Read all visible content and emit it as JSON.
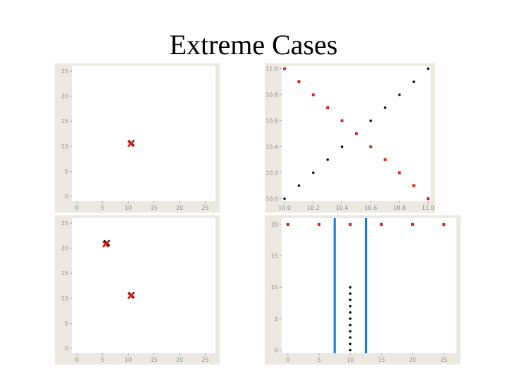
{
  "slide": {
    "title": "Extreme Cases"
  },
  "colors": {
    "red": "#d9201c",
    "black": "#111111",
    "blue": "#1f78c8",
    "panel_bg": "#ece9e3",
    "plot_bg": "#ffffff"
  },
  "chart_data": [
    {
      "type": "scatter",
      "xlim": [
        -1,
        27
      ],
      "ylim": [
        -1,
        26
      ],
      "xticks": [
        "0",
        "5",
        "10",
        "15",
        "20",
        "25"
      ],
      "yticks": [
        "0",
        "5",
        "10",
        "15",
        "20",
        "25"
      ],
      "grid": false,
      "series": [
        {
          "color": "black",
          "marker": "x",
          "points": [
            [
              10.6,
              10.6
            ]
          ]
        },
        {
          "color": "red",
          "marker": "x",
          "points": [
            [
              10.5,
              10.5
            ]
          ]
        }
      ]
    },
    {
      "type": "scatter",
      "xlim": [
        9.98,
        11.02
      ],
      "ylim": [
        9.98,
        11.02
      ],
      "xticks": [
        "10.0",
        "10.2",
        "10.4",
        "10.6",
        "10.8",
        "11.0"
      ],
      "yticks": [
        "10.0",
        "10.2",
        "10.4",
        "10.6",
        "10.8",
        "11.0"
      ],
      "grid": false,
      "series": [
        {
          "color": "black",
          "marker": "dot",
          "points": [
            [
              10.0,
              10.0
            ],
            [
              10.1,
              10.1
            ],
            [
              10.2,
              10.2
            ],
            [
              10.3,
              10.3
            ],
            [
              10.4,
              10.4
            ],
            [
              10.6,
              10.6
            ],
            [
              10.7,
              10.7
            ],
            [
              10.8,
              10.8
            ],
            [
              10.9,
              10.9
            ],
            [
              11.0,
              11.0
            ]
          ]
        },
        {
          "color": "red",
          "marker": "square",
          "points": [
            [
              10.0,
              11.0
            ],
            [
              10.1,
              10.9
            ],
            [
              10.2,
              10.8
            ],
            [
              10.3,
              10.7
            ],
            [
              10.4,
              10.6
            ],
            [
              10.5,
              10.5
            ],
            [
              10.6,
              10.4
            ],
            [
              10.7,
              10.3
            ],
            [
              10.8,
              10.2
            ],
            [
              10.9,
              10.1
            ],
            [
              11.0,
              10.0
            ]
          ]
        }
      ]
    },
    {
      "type": "scatter",
      "xlim": [
        -1,
        27
      ],
      "ylim": [
        -1,
        26
      ],
      "xticks": [
        "0",
        "5",
        "10",
        "15",
        "20",
        "25"
      ],
      "yticks": [
        "0",
        "5",
        "10",
        "15",
        "20",
        "25"
      ],
      "grid": false,
      "series": [
        {
          "color": "black",
          "marker": "x",
          "points": [
            [
              5.8,
              21.0
            ],
            [
              10.6,
              10.6
            ]
          ]
        },
        {
          "color": "red",
          "marker": "x",
          "points": [
            [
              5.6,
              20.8
            ],
            [
              10.5,
              10.5
            ]
          ]
        }
      ]
    },
    {
      "type": "scatter",
      "xlim": [
        -1,
        27
      ],
      "ylim": [
        -0.5,
        21
      ],
      "xticks": [
        "0",
        "5",
        "10",
        "15",
        "20",
        "25"
      ],
      "yticks": [
        "0",
        "5",
        "10",
        "15",
        "20"
      ],
      "grid": false,
      "vlines": [
        7.5,
        12.5
      ],
      "series": [
        {
          "color": "red",
          "marker": "square",
          "points": [
            [
              0,
              20
            ],
            [
              5,
              20
            ],
            [
              10,
              20
            ],
            [
              15,
              20
            ],
            [
              20,
              20
            ],
            [
              25,
              20
            ]
          ]
        },
        {
          "color": "black",
          "marker": "dot",
          "points": [
            [
              10,
              0
            ],
            [
              10,
              1
            ],
            [
              10,
              2
            ],
            [
              10,
              3
            ],
            [
              10,
              4
            ],
            [
              10,
              5
            ],
            [
              10,
              6
            ],
            [
              10,
              7
            ],
            [
              10,
              8
            ],
            [
              10,
              9
            ],
            [
              10,
              10
            ]
          ]
        }
      ]
    }
  ]
}
